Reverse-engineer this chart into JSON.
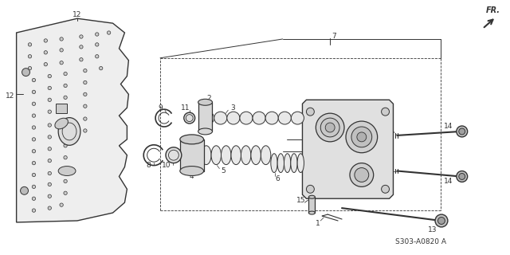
{
  "bg_color": "#ffffff",
  "line_color": "#333333",
  "part_number_text": "S303-A0820 A",
  "fr_label": "FR.",
  "figsize": [
    6.4,
    3.2
  ],
  "dpi": 100
}
